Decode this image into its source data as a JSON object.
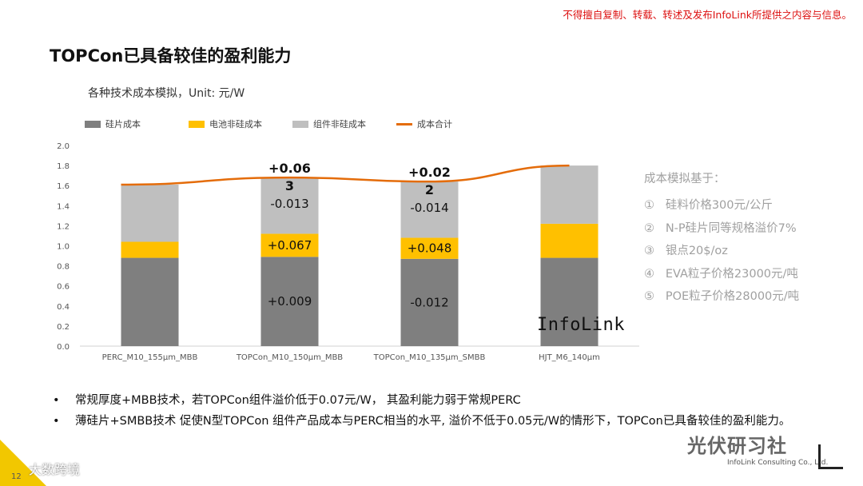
{
  "header": {
    "disclaimer": "不得擅自复制、转载、转述及发布InfoLink所提供之内容与信息。",
    "title": "TOPCon已具备较佳的盈利能力"
  },
  "chart_title": "各种技术成本模拟，Unit: 元/W",
  "chart_data": {
    "type": "bar",
    "stacked": true,
    "categories": [
      "PERC_M10_155μm_MBB",
      "TOPCon_M10_150μm_MBB",
      "TOPCon_M10_135μm_SMBB",
      "HJT_M6_140μm"
    ],
    "series": [
      {
        "name": "硅片成本",
        "color": "#7f7f7f",
        "values": [
          0.88,
          0.89,
          0.87,
          0.88
        ]
      },
      {
        "name": "电池非硅成本",
        "color": "#ffc000",
        "values": [
          0.16,
          0.23,
          0.21,
          0.34
        ]
      },
      {
        "name": "组件非硅成本",
        "color": "#bfbfbf",
        "values": [
          0.57,
          0.56,
          0.56,
          0.58
        ]
      }
    ],
    "line_series": {
      "name": "成本合计",
      "color": "#e46c0a",
      "values": [
        1.61,
        1.68,
        1.64,
        1.8
      ]
    },
    "ylim": [
      0,
      2.0
    ],
    "yticks": [
      "0.0",
      "0.2",
      "0.4",
      "0.6",
      "0.8",
      "1.0",
      "1.2",
      "1.4",
      "1.6",
      "1.8",
      "2.0"
    ],
    "ytick_values": [
      0,
      0.2,
      0.4,
      0.6,
      0.8,
      1.0,
      1.2,
      1.4,
      1.6,
      1.8,
      2.0
    ],
    "annotations": [
      {
        "bar": 1,
        "segment": 0,
        "text": "+0.009"
      },
      {
        "bar": 1,
        "segment": 1,
        "text": "+0.067"
      },
      {
        "bar": 1,
        "segment": 2,
        "text": "-0.013"
      },
      {
        "bar": 1,
        "segment": "total",
        "text": "+0.06",
        "text2": "3"
      },
      {
        "bar": 2,
        "segment": 0,
        "text": "-0.012"
      },
      {
        "bar": 2,
        "segment": 1,
        "text": "+0.048"
      },
      {
        "bar": 2,
        "segment": 2,
        "text": "-0.014"
      },
      {
        "bar": 2,
        "segment": "total",
        "text": "+0.02",
        "text2": "2"
      }
    ]
  },
  "watermark_infolink": "InfoLink",
  "notes": {
    "title": "成本模拟基于：",
    "items": [
      {
        "num": "①",
        "text": "硅料价格300元/公斤"
      },
      {
        "num": "②",
        "text": "N-P硅片同等规格溢价7%"
      },
      {
        "num": "③",
        "text": "银点20$/oz"
      },
      {
        "num": "④",
        "text": "EVA粒子价格23000元/吨"
      },
      {
        "num": "⑤",
        "text": "POE粒子价格28000元/吨"
      }
    ]
  },
  "bullets": [
    "常规厚度+MBB技术，若TOPCon组件溢价低于0.07元/W， 其盈利能力弱于常规PERC",
    "薄硅片+SMBB技术 促使N型TOPCon 组件产品成本与PERC相当的水平, 溢价不低于0.05元/W的情形下，TOPCon已具备较佳的盈利能力。"
  ],
  "footer": {
    "page_number": "12",
    "watermark_left": "大数跨境",
    "watermark_right": "光伏研习社",
    "watermark_right_sub": "InfoLink Consulting Co., Ltd."
  }
}
